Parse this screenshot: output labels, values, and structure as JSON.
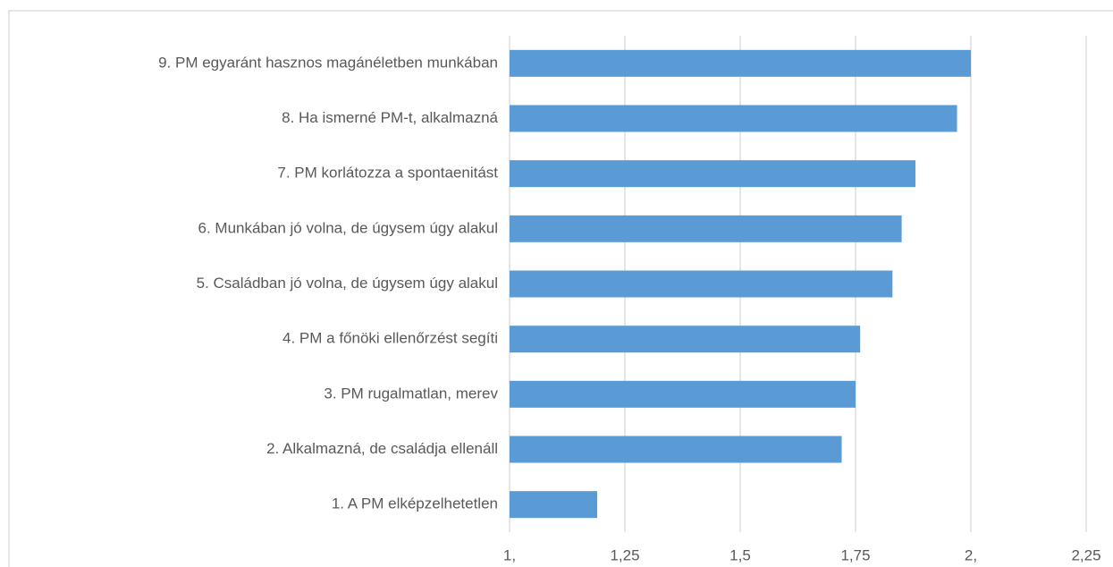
{
  "chart_data": {
    "type": "bar",
    "orientation": "horizontal",
    "categories": [
      "1. A PM elképzelhetetlen",
      "2. Alkalmazná, de családja ellenáll",
      "3. PM rugalmatlan, merev",
      "4. PM a főnöki ellenőrzést segíti",
      "5. Családban jó volna, de úgysem úgy alakul",
      "6. Munkában jó volna, de úgysem úgy alakul",
      "7. PM korlátozza a spontaenitást",
      "8. Ha ismerné PM-t, alkalmazná",
      "9. PM egyaránt hasznos magánéletben munkában"
    ],
    "values": [
      1.19,
      1.72,
      1.75,
      1.76,
      1.83,
      1.85,
      1.88,
      1.97,
      2.0
    ],
    "color": "#5b9bd5",
    "xlim": [
      1,
      2.25
    ],
    "xticks": [
      {
        "value": 1,
        "label": "1,"
      },
      {
        "value": 1.25,
        "label": "1,25"
      },
      {
        "value": 1.5,
        "label": "1,5"
      },
      {
        "value": 1.75,
        "label": "1,75"
      },
      {
        "value": 2,
        "label": "2,"
      },
      {
        "value": 2.25,
        "label": "2,25"
      }
    ],
    "grid": true
  }
}
